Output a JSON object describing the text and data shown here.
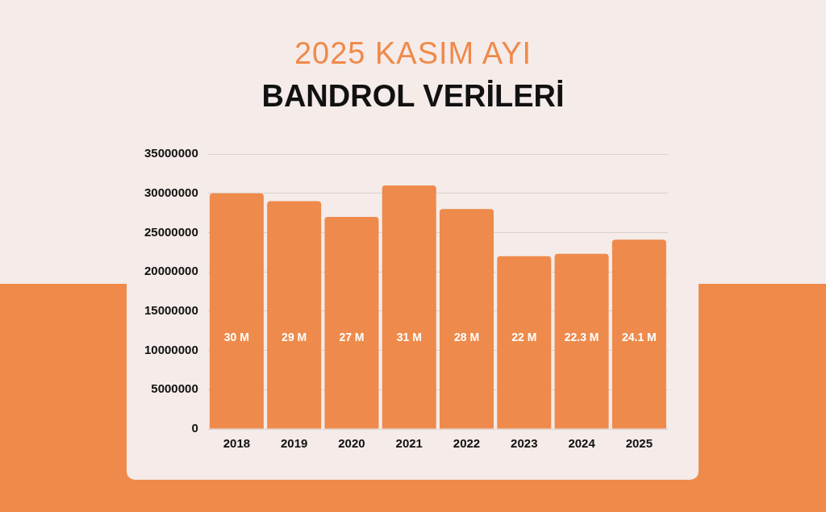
{
  "chart_data": {
    "type": "bar",
    "title": "2025 KASIM AYI",
    "subtitle": "BANDROL VERİLERİ",
    "categories": [
      "2018",
      "2019",
      "2020",
      "2021",
      "2022",
      "2023",
      "2024",
      "2025"
    ],
    "values": [
      30000000,
      29000000,
      27000000,
      31000000,
      28000000,
      22000000,
      22300000,
      24100000
    ],
    "value_labels": [
      "30 M",
      "29 M",
      "27 M",
      "31 M",
      "28 M",
      "22 M",
      "22.3 M",
      "24.1 M"
    ],
    "color": "#ee8a4b",
    "ylim": [
      0,
      35000000
    ],
    "yticks": [
      0,
      5000000,
      10000000,
      15000000,
      20000000,
      25000000,
      30000000,
      35000000
    ],
    "grid": "y",
    "legend": false
  }
}
